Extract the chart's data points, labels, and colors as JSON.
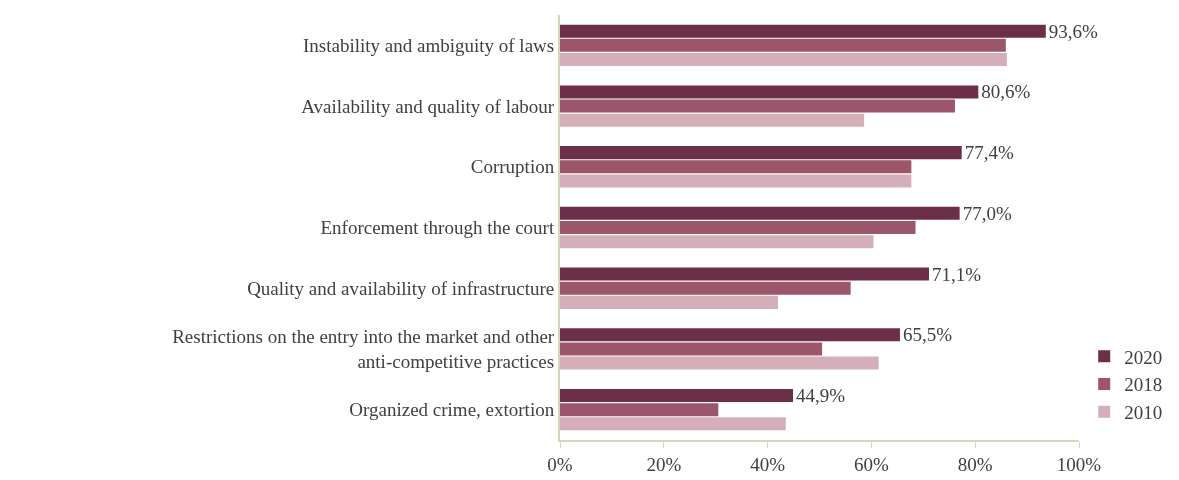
{
  "chart_data": {
    "type": "bar",
    "orientation": "horizontal",
    "categories": [
      "Instability and ambiguity of laws",
      "Availability and quality of labour",
      "Corruption",
      "Enforcement through the court",
      "Quality and availability of infrastructure",
      "Restrictions on the entry into the market and other anti-competitive practices",
      "Organized crime, extortion"
    ],
    "series": [
      {
        "name": "2020",
        "color": "#6b2f47",
        "values": [
          93.6,
          80.6,
          77.4,
          77.0,
          71.1,
          65.5,
          44.9
        ],
        "value_labels": [
          "93,6%",
          "80,6%",
          "77,4%",
          "77,0%",
          "71,1%",
          "65,5%",
          "44,9%"
        ]
      },
      {
        "name": "2018",
        "color": "#9b566b",
        "values": [
          85.9,
          76.1,
          67.7,
          68.5,
          56.0,
          50.5,
          30.5
        ]
      },
      {
        "name": "2010",
        "color": "#d4afba",
        "values": [
          86.1,
          58.6,
          67.7,
          60.4,
          42.0,
          61.4,
          43.5
        ]
      }
    ],
    "xlim": [
      0,
      100
    ],
    "xticks": [
      {
        "value": 0,
        "label": "0%"
      },
      {
        "value": 20,
        "label": "20%"
      },
      {
        "value": 40,
        "label": "40%"
      },
      {
        "value": 60,
        "label": "60%"
      },
      {
        "value": 80,
        "label": "80%"
      },
      {
        "value": 100,
        "label": "100%"
      }
    ],
    "grid": false,
    "legend": "bottom right"
  }
}
